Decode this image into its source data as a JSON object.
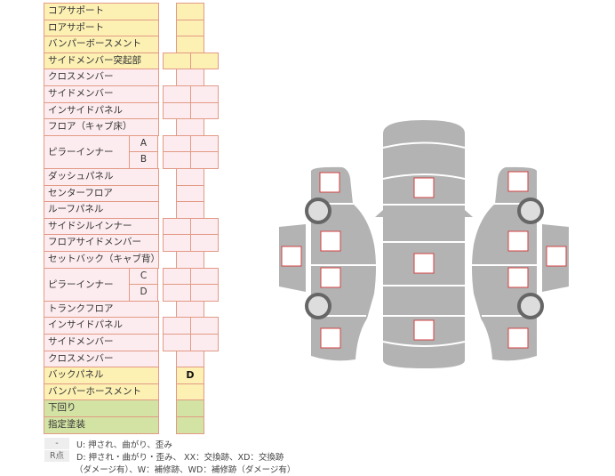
{
  "rows": [
    {
      "label": "コアサポート",
      "color": "y",
      "cells": 1
    },
    {
      "label": "ロアサポート",
      "color": "y",
      "cells": 1
    },
    {
      "label": "バンパーボースメント",
      "color": "y",
      "cells": 1
    },
    {
      "label": "サイドメンバー突起部",
      "color": "y",
      "cells": 2
    },
    {
      "label": "クロスメンバー",
      "color": "p",
      "cells": 1
    },
    {
      "label": "サイドメンバー",
      "color": "p",
      "cells": 2
    },
    {
      "label": "インサイドパネル",
      "color": "p",
      "cells": 2
    },
    {
      "label": "フロア（キャブ床）",
      "color": "p",
      "cells": 1
    },
    {
      "label": "ピラーインナー",
      "sub": "A",
      "color": "p",
      "cells": 2,
      "span": 2
    },
    {
      "sub": "B",
      "color": "p",
      "cells": 2
    },
    {
      "label": "ダッシュパネル",
      "color": "p",
      "cells": 1
    },
    {
      "label": "センターフロア",
      "color": "p",
      "cells": 1
    },
    {
      "label": "ルーフパネル",
      "color": "p",
      "cells": 1
    },
    {
      "label": "サイドシルインナー",
      "color": "p",
      "cells": 2
    },
    {
      "label": "フロアサイドメンバー",
      "color": "p",
      "cells": 2
    },
    {
      "label": "セットバック（キャブ背）",
      "color": "p",
      "cells": 1
    },
    {
      "label": "ピラーインナー",
      "sub": "C",
      "color": "p",
      "cells": 2,
      "span": 2
    },
    {
      "sub": "D",
      "color": "p",
      "cells": 2
    },
    {
      "label": "トランクフロア",
      "color": "p",
      "cells": 1
    },
    {
      "label": "インサイドパネル",
      "color": "p",
      "cells": 2
    },
    {
      "label": "サイドメンバー",
      "color": "p",
      "cells": 2
    },
    {
      "label": "クロスメンバー",
      "color": "p",
      "cells": 1
    },
    {
      "label": "バックパネル",
      "color": "y",
      "cells": 1,
      "value": "D"
    },
    {
      "label": "バンパーホースメント",
      "color": "y",
      "cells": 1
    },
    {
      "label": "下回り",
      "color": "g",
      "cells": 1
    },
    {
      "label": "指定塗装",
      "color": "g",
      "cells": 1
    }
  ],
  "legend": [
    {
      "tag": "-",
      "text": "U: 押され、曲がり、歪み"
    },
    {
      "tag": "R点",
      "text": "D: 押され・曲がり・歪み、 XX：交換跡、XD：交換跡"
    },
    {
      "tag": "",
      "text": "（ダメージ有）、W：補修跡、WD：補修跡（ダメージ有）"
    }
  ],
  "colors": {
    "yellow": "#fcf0b3",
    "pink": "#fdecef",
    "green": "#d3e3a3",
    "border": "#e29a86",
    "body": "#b3b3b3",
    "marker": "#d04040"
  }
}
